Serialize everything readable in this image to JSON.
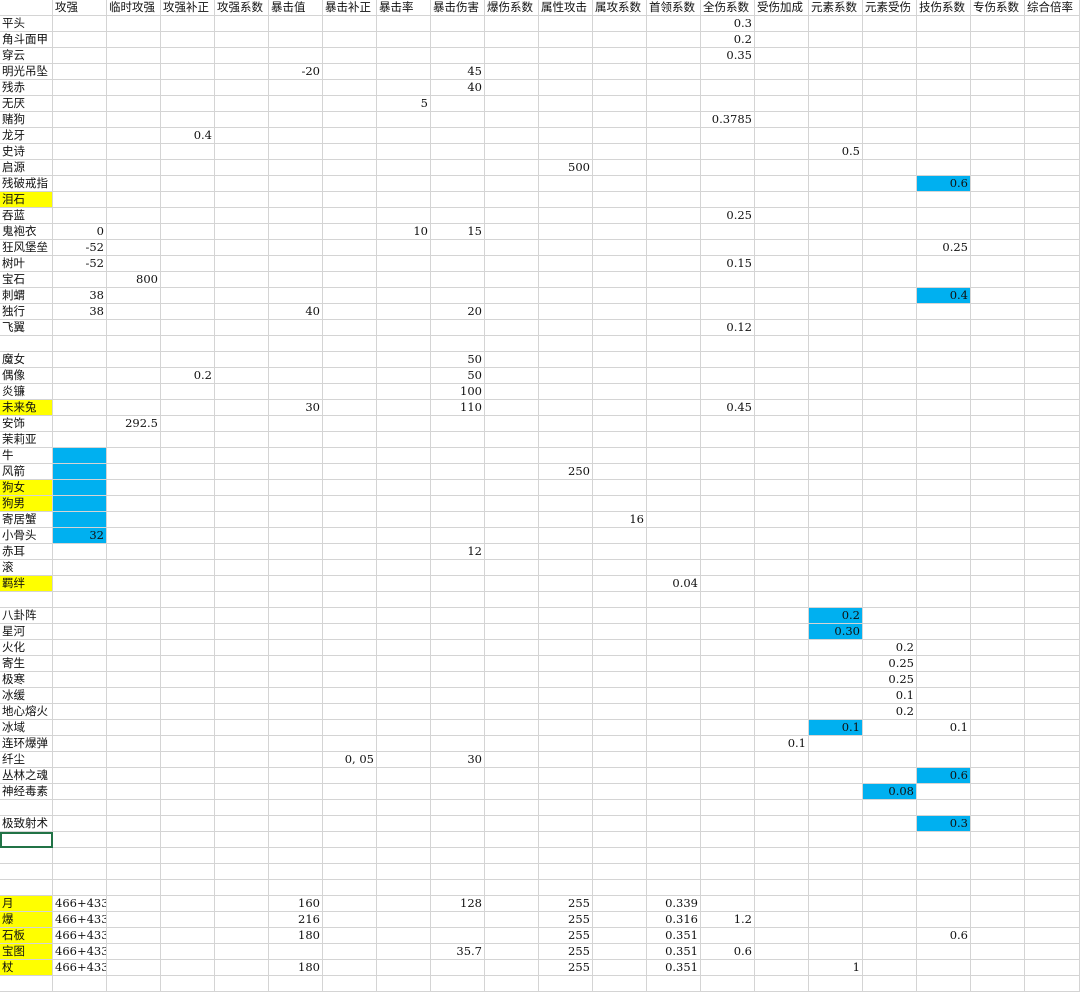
{
  "sheet": {
    "headers": [
      "攻强",
      "临时攻强",
      "攻强补正",
      "攻强系数",
      "暴击值",
      "暴击补正",
      "暴击率",
      "暴击伤害",
      "爆伤系数",
      "属性攻击",
      "属攻系数",
      "首领系数",
      "全伤系数",
      "受伤加成",
      "元素系数",
      "元素受伤",
      "技伤系数",
      "专伤系数",
      "综合倍率"
    ],
    "rows": [
      {
        "name": "平头",
        "hl": "",
        "cells": {
          "12": "0.3"
        }
      },
      {
        "name": "角斗面甲",
        "hl": "",
        "cells": {
          "12": "0.2"
        }
      },
      {
        "name": "穿云",
        "hl": "",
        "cells": {
          "12": "0.35"
        }
      },
      {
        "name": "明光吊坠",
        "hl": "",
        "cells": {
          "4": "-20",
          "7": "45"
        }
      },
      {
        "name": "残赤",
        "hl": "",
        "cells": {
          "7": "40"
        }
      },
      {
        "name": "无厌",
        "hl": "",
        "cells": {
          "6": "5"
        }
      },
      {
        "name": "赌狗",
        "hl": "",
        "cells": {
          "12": "0.3785"
        }
      },
      {
        "name": "龙牙",
        "hl": "",
        "cells": {
          "2": "0.4"
        }
      },
      {
        "name": "史诗",
        "hl": "",
        "cells": {
          "14": "0.5"
        }
      },
      {
        "name": "启源",
        "hl": "",
        "cells": {
          "9": "500"
        }
      },
      {
        "name": "残破戒指",
        "hl": "",
        "cells": {
          "16": "0.6"
        },
        "blue": [
          16
        ]
      },
      {
        "name": "泪石",
        "hl": "yellow",
        "cells": {}
      },
      {
        "name": "吞蓝",
        "hl": "",
        "cells": {
          "12": "0.25"
        }
      },
      {
        "name": "鬼袍衣",
        "hl": "",
        "cells": {
          "0": "0",
          "6": "10",
          "7": "15"
        }
      },
      {
        "name": "狂风堡垒",
        "hl": "",
        "cells": {
          "0": "-52",
          "16": "0.25"
        }
      },
      {
        "name": "树叶",
        "hl": "",
        "cells": {
          "0": "-52",
          "12": "0.15"
        }
      },
      {
        "name": "宝石",
        "hl": "",
        "cells": {
          "1": "800"
        }
      },
      {
        "name": "刺蝟",
        "hl": "",
        "cells": {
          "0": "38",
          "16": "0.4"
        },
        "blue": [
          16
        ]
      },
      {
        "name": "独行",
        "hl": "",
        "cells": {
          "0": "38",
          "4": "40",
          "7": "20"
        }
      },
      {
        "name": "飞翼",
        "hl": "",
        "cells": {
          "12": "0.12"
        }
      },
      {
        "name": "",
        "hl": "",
        "cells": {}
      },
      {
        "name": "魔女",
        "hl": "",
        "cells": {
          "7": "50"
        }
      },
      {
        "name": "偶像",
        "hl": "",
        "cells": {
          "2": "0.2",
          "7": "50"
        }
      },
      {
        "name": "炎镰",
        "hl": "",
        "cells": {
          "7": "100"
        }
      },
      {
        "name": "未来兔",
        "hl": "yellow",
        "cells": {
          "4": "30",
          "7": "110",
          "12": "0.45"
        }
      },
      {
        "name": "安饰",
        "hl": "",
        "cells": {
          "1": "292.5"
        }
      },
      {
        "name": "茉莉亚",
        "hl": "",
        "cells": {}
      },
      {
        "name": "牛",
        "hl": "",
        "cells": {},
        "blue": [
          0
        ]
      },
      {
        "name": "风箭",
        "hl": "",
        "cells": {
          "9": "250"
        },
        "blue": [
          0
        ]
      },
      {
        "name": "狗女",
        "hl": "yellow",
        "cells": {},
        "blue": [
          0
        ]
      },
      {
        "name": "狗男",
        "hl": "yellow",
        "cells": {},
        "blue": [
          0
        ]
      },
      {
        "name": "寄居蟹",
        "hl": "",
        "cells": {
          "10": "16"
        },
        "blue": [
          0
        ]
      },
      {
        "name": "小骨头",
        "hl": "",
        "cells": {
          "0": "32"
        },
        "blue": [
          0
        ]
      },
      {
        "name": "赤耳",
        "hl": "",
        "cells": {
          "7": "12"
        }
      },
      {
        "name": "滚",
        "hl": "",
        "cells": {}
      },
      {
        "name": "羁绊",
        "hl": "yellow",
        "cells": {
          "11": "0.04"
        }
      },
      {
        "name": "",
        "hl": "",
        "cells": {}
      },
      {
        "name": "八卦阵",
        "hl": "",
        "cells": {
          "14": "0.2"
        },
        "blue": [
          14
        ]
      },
      {
        "name": "星河",
        "hl": "",
        "cells": {
          "14": "0.30"
        },
        "blue": [
          14
        ]
      },
      {
        "name": "火化",
        "hl": "",
        "cells": {
          "15": "0.2"
        }
      },
      {
        "name": "寄生",
        "hl": "",
        "cells": {
          "15": "0.25"
        }
      },
      {
        "name": "极寒",
        "hl": "",
        "cells": {
          "15": "0.25"
        }
      },
      {
        "name": "冰缓",
        "hl": "",
        "cells": {
          "15": "0.1"
        }
      },
      {
        "name": "地心熔火",
        "hl": "",
        "cells": {
          "15": "0.2"
        }
      },
      {
        "name": "冰域",
        "hl": "",
        "cells": {
          "14": "0.1",
          "16": "0.1"
        },
        "blue": [
          14
        ]
      },
      {
        "name": "连环爆弹",
        "hl": "",
        "cells": {
          "13": "0.1"
        }
      },
      {
        "name": "纤尘",
        "hl": "",
        "cells": {
          "5": "0, 05",
          "7": "30"
        }
      },
      {
        "name": "丛林之魂",
        "hl": "",
        "cells": {
          "16": "0.6"
        },
        "blue": [
          16
        ]
      },
      {
        "name": "神经毒素",
        "hl": "",
        "cells": {
          "15": "0.08"
        },
        "blue": [
          15
        ]
      },
      {
        "name": "",
        "hl": "",
        "cells": {}
      },
      {
        "name": "极致射术",
        "hl": "",
        "cells": {
          "16": "0.3"
        },
        "blue": [
          16
        ]
      },
      {
        "name": "",
        "hl": "",
        "cells": {},
        "selected": true
      },
      {
        "name": "",
        "hl": "",
        "cells": {}
      },
      {
        "name": "",
        "hl": "",
        "cells": {}
      },
      {
        "name": "",
        "hl": "",
        "cells": {}
      },
      {
        "name": "月",
        "hl": "yellow",
        "cells": {
          "0": "466+433",
          "4": "160",
          "7": "128",
          "9": "255",
          "11": "0.339"
        }
      },
      {
        "name": "爆",
        "hl": "yellow",
        "cells": {
          "0": "466+433",
          "4": "216",
          "9": "255",
          "11": "0.316",
          "12": "1.2"
        }
      },
      {
        "name": "石板",
        "hl": "yellow",
        "cells": {
          "0": "466+433",
          "4": "180",
          "9": "255",
          "11": "0.351",
          "16": "0.6"
        }
      },
      {
        "name": "宝图",
        "hl": "yellow",
        "cells": {
          "0": "466+433",
          "7": "35.7",
          "9": "255",
          "11": "0.351",
          "12": "0.6"
        }
      },
      {
        "name": "杖",
        "hl": "yellow",
        "cells": {
          "0": "466+433",
          "4": "180",
          "9": "255",
          "11": "0.351",
          "14": "1"
        }
      },
      {
        "name": "",
        "hl": "",
        "cells": {}
      }
    ]
  }
}
